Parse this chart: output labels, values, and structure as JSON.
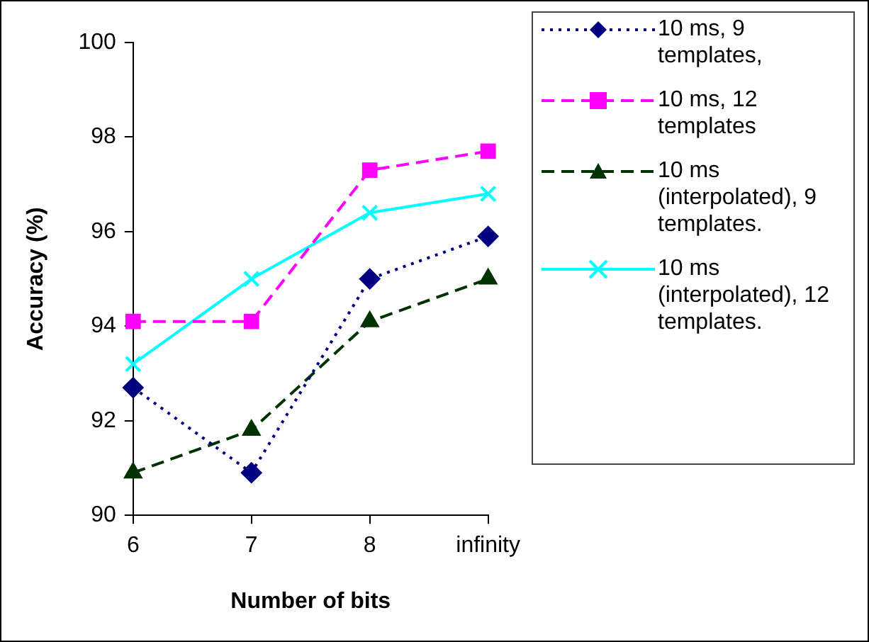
{
  "chart_data": {
    "type": "line",
    "xlabel": "Number of bits",
    "ylabel": "Accuracy (%)",
    "categories": [
      "6",
      "7",
      "8",
      "infinity"
    ],
    "ylim": [
      90,
      100
    ],
    "yticks": [
      90,
      92,
      94,
      96,
      98,
      100
    ],
    "grid": false,
    "legend": "right",
    "series": [
      {
        "name": "10 ms, 9 templates,",
        "color": "#000080",
        "marker": "diamond",
        "line_style": "dotted",
        "values": [
          92.7,
          90.9,
          95.0,
          95.9
        ]
      },
      {
        "name": "10 ms, 12 templates",
        "color": "#ff00ff",
        "marker": "square",
        "line_style": "dashed",
        "values": [
          94.1,
          94.1,
          97.3,
          97.7
        ]
      },
      {
        "name": "10 ms (interpolated), 9 templates.",
        "color": "#003300",
        "marker": "triangle",
        "line_style": "dashed",
        "values": [
          90.9,
          91.8,
          94.1,
          95.0
        ]
      },
      {
        "name": "10 ms (interpolated), 12 templates.",
        "color": "#00ffff",
        "marker": "cross",
        "line_style": "solid",
        "values": [
          93.2,
          95.0,
          96.4,
          96.8
        ]
      }
    ]
  }
}
